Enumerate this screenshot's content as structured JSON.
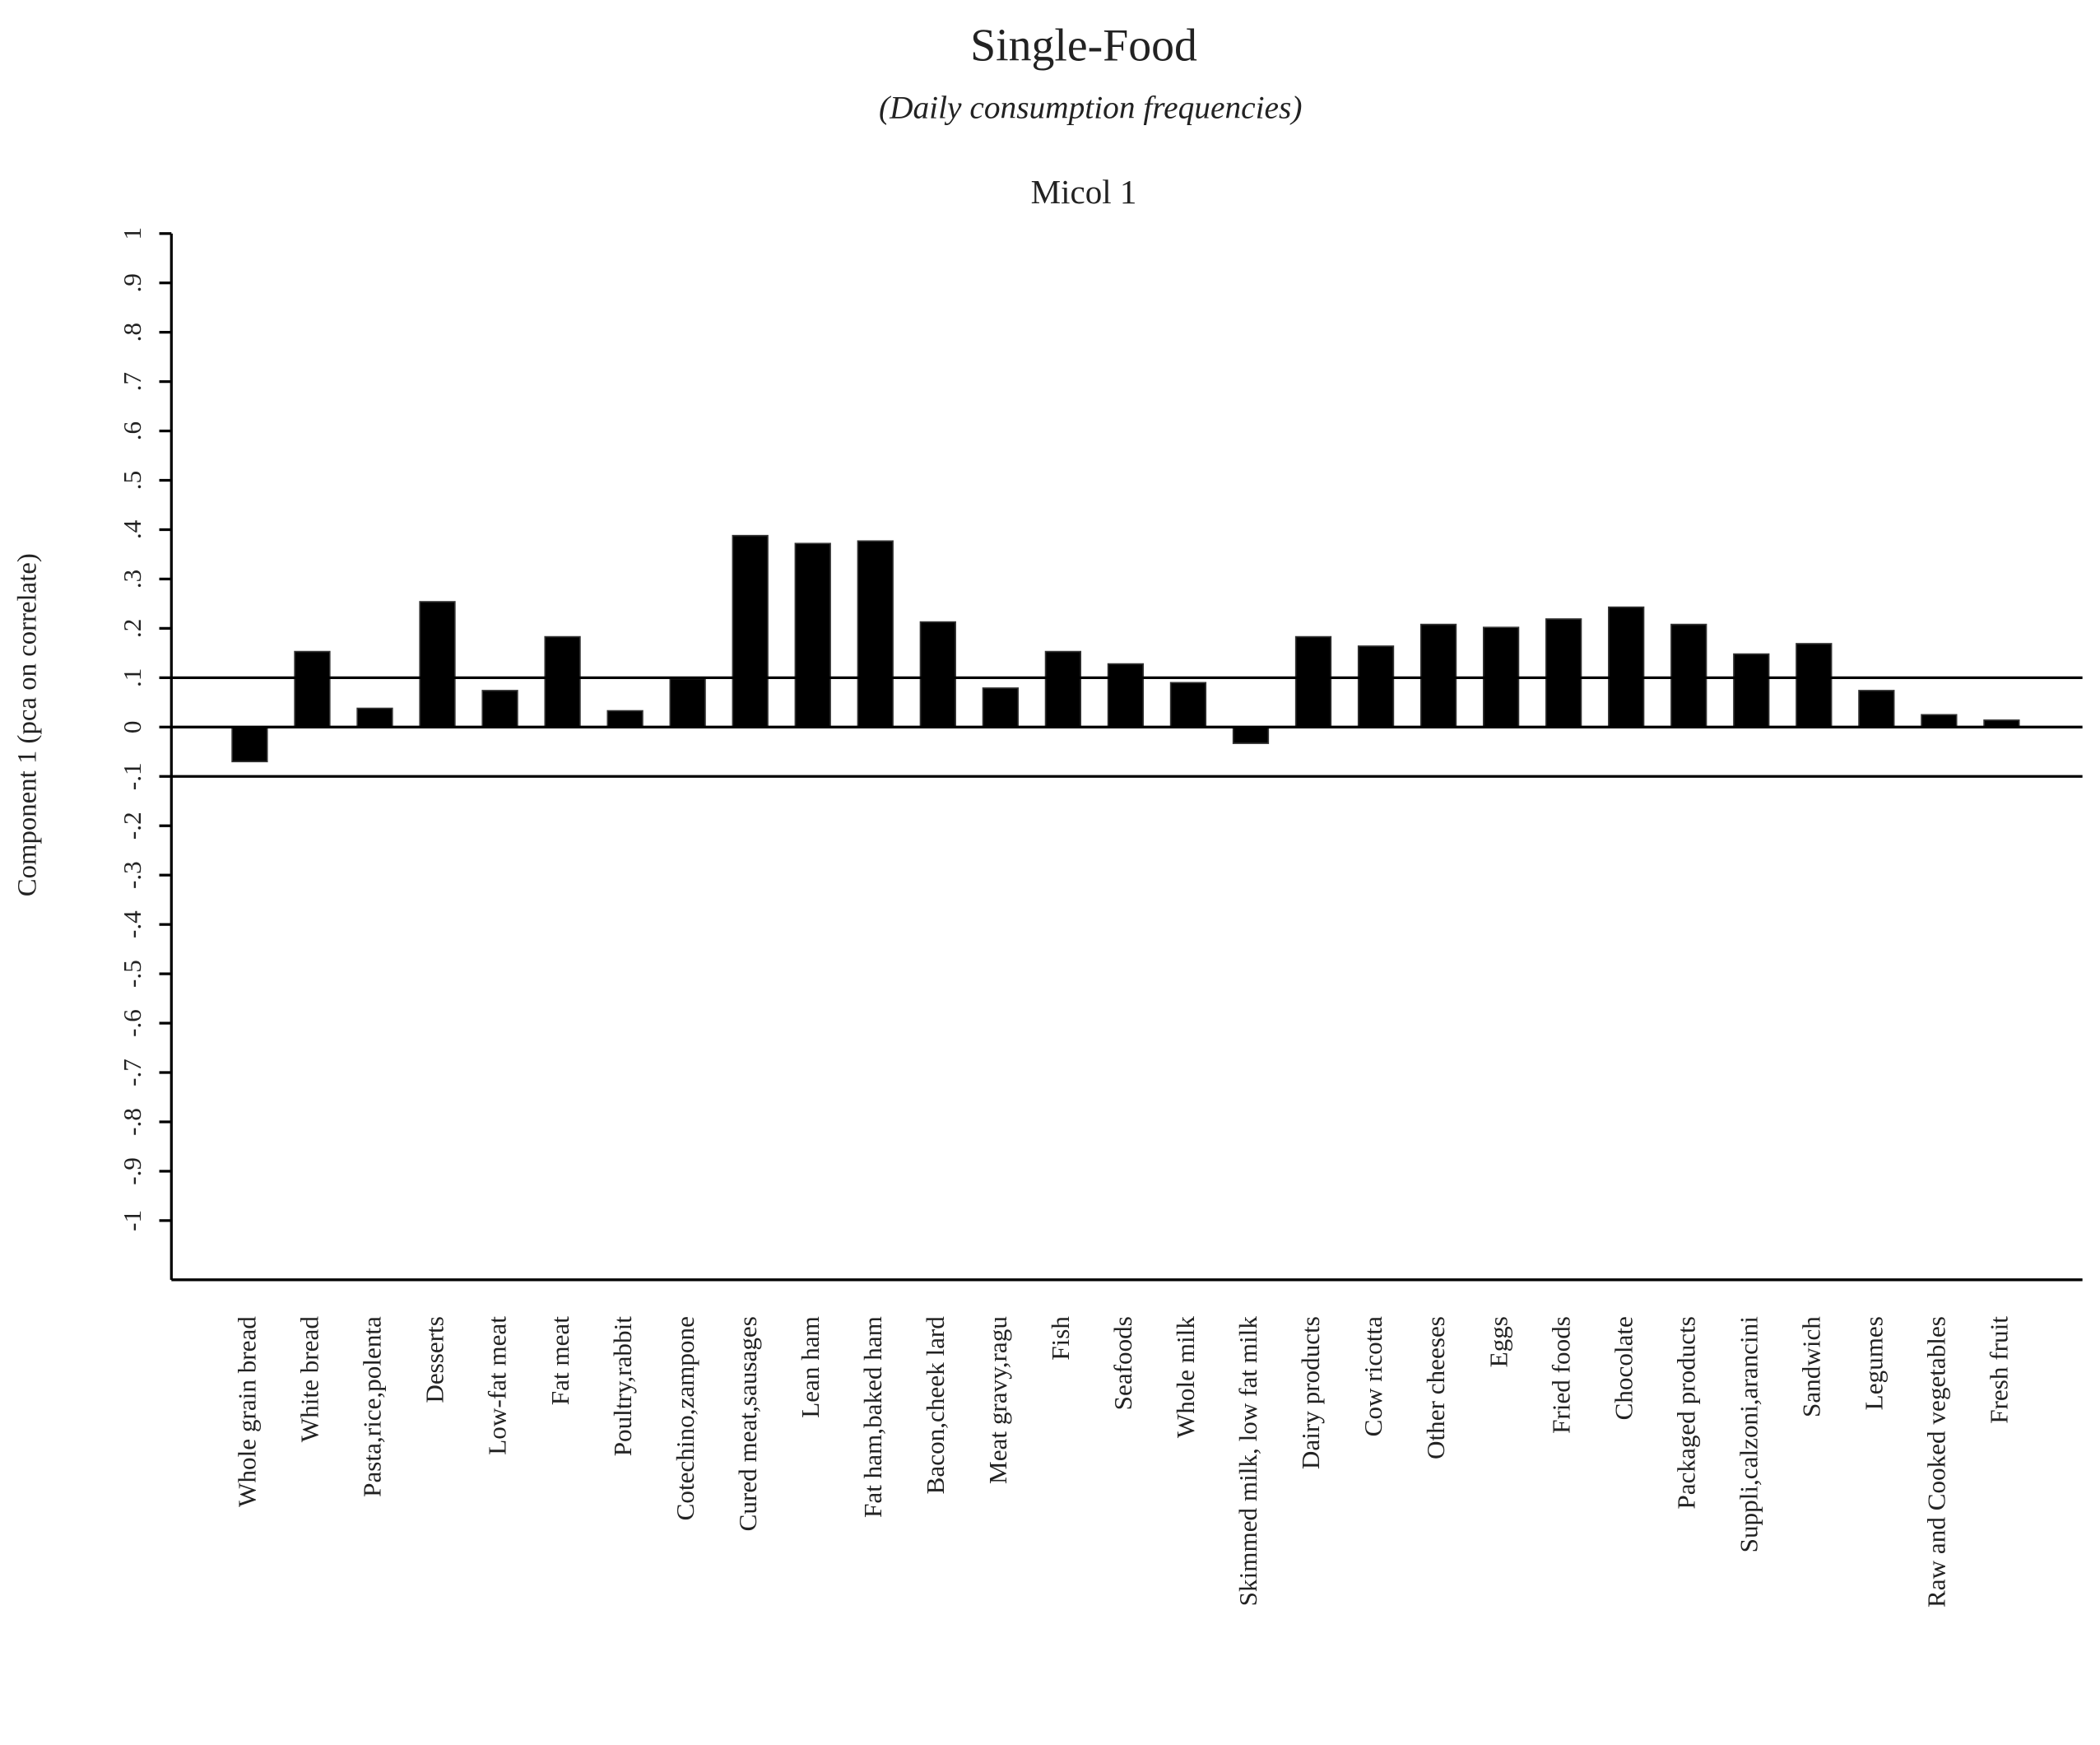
{
  "chart_data": {
    "type": "bar",
    "title": "Single-Food",
    "subtitle": "(Daily consumption frequencies)",
    "panel_title": "Micol 1",
    "y_label": "Component 1 (pca on correlate)",
    "categories": [
      "Whole grain bread",
      "White bread",
      "Pasta,rice,polenta",
      "Desserts",
      "Low-fat meat",
      "Fat meat",
      "Poultry,rabbit",
      "Cotechino,zampone",
      "Cured meat,sausages",
      "Lean ham",
      "Fat ham,baked ham",
      "Bacon,cheek lard",
      "Meat gravy,ragu",
      "Fish",
      "Seafoods",
      "Whole milk",
      "Skimmed milk, low fat milk",
      "Dairy products",
      "Cow ricotta",
      "Other cheeses",
      "Eggs",
      "Fried foods",
      "Chocolate",
      "Packaged products",
      "Suppli,calzoni,arancini",
      "Sandwich",
      "Legumes",
      "Raw and Cooked vegetables",
      "Fresh fruit"
    ],
    "values": [
      -0.07,
      0.153,
      0.038,
      0.254,
      0.074,
      0.183,
      0.033,
      0.098,
      0.388,
      0.372,
      0.377,
      0.213,
      0.079,
      0.153,
      0.128,
      0.09,
      -0.033,
      0.183,
      0.164,
      0.208,
      0.202,
      0.219,
      0.243,
      0.208,
      0.148,
      0.169,
      0.074,
      0.025,
      0.014
    ],
    "color": "#000000",
    "ylim": [
      -1.12,
      1
    ],
    "yticks": [
      1,
      {
        "value": 0.9,
        "label": ".9"
      },
      {
        "value": 0.8,
        "label": ".8"
      },
      {
        "value": 0.7,
        "label": ".7"
      },
      {
        "value": 0.6,
        "label": ".6"
      },
      {
        "value": 0.5,
        "label": ".5"
      },
      {
        "value": 0.4,
        "label": ".4"
      },
      {
        "value": 0.3,
        "label": ".3"
      },
      {
        "value": 0.2,
        "label": ".2"
      },
      {
        "value": 0.1,
        "label": ".1"
      },
      0,
      {
        "value": -0.1,
        "label": "-.1"
      },
      {
        "value": -0.2,
        "label": "-.2"
      },
      {
        "value": -0.3,
        "label": "-.3"
      },
      {
        "value": -0.4,
        "label": "-.4"
      },
      {
        "value": -0.5,
        "label": "-.5"
      },
      {
        "value": -0.6,
        "label": "-.6"
      },
      {
        "value": -0.7,
        "label": "-.7"
      },
      {
        "value": -0.8,
        "label": "-.8"
      },
      {
        "value": -0.9,
        "label": "-.9"
      },
      -1
    ],
    "hlines": [
      0.1,
      0,
      -0.1
    ],
    "grid": false
  }
}
